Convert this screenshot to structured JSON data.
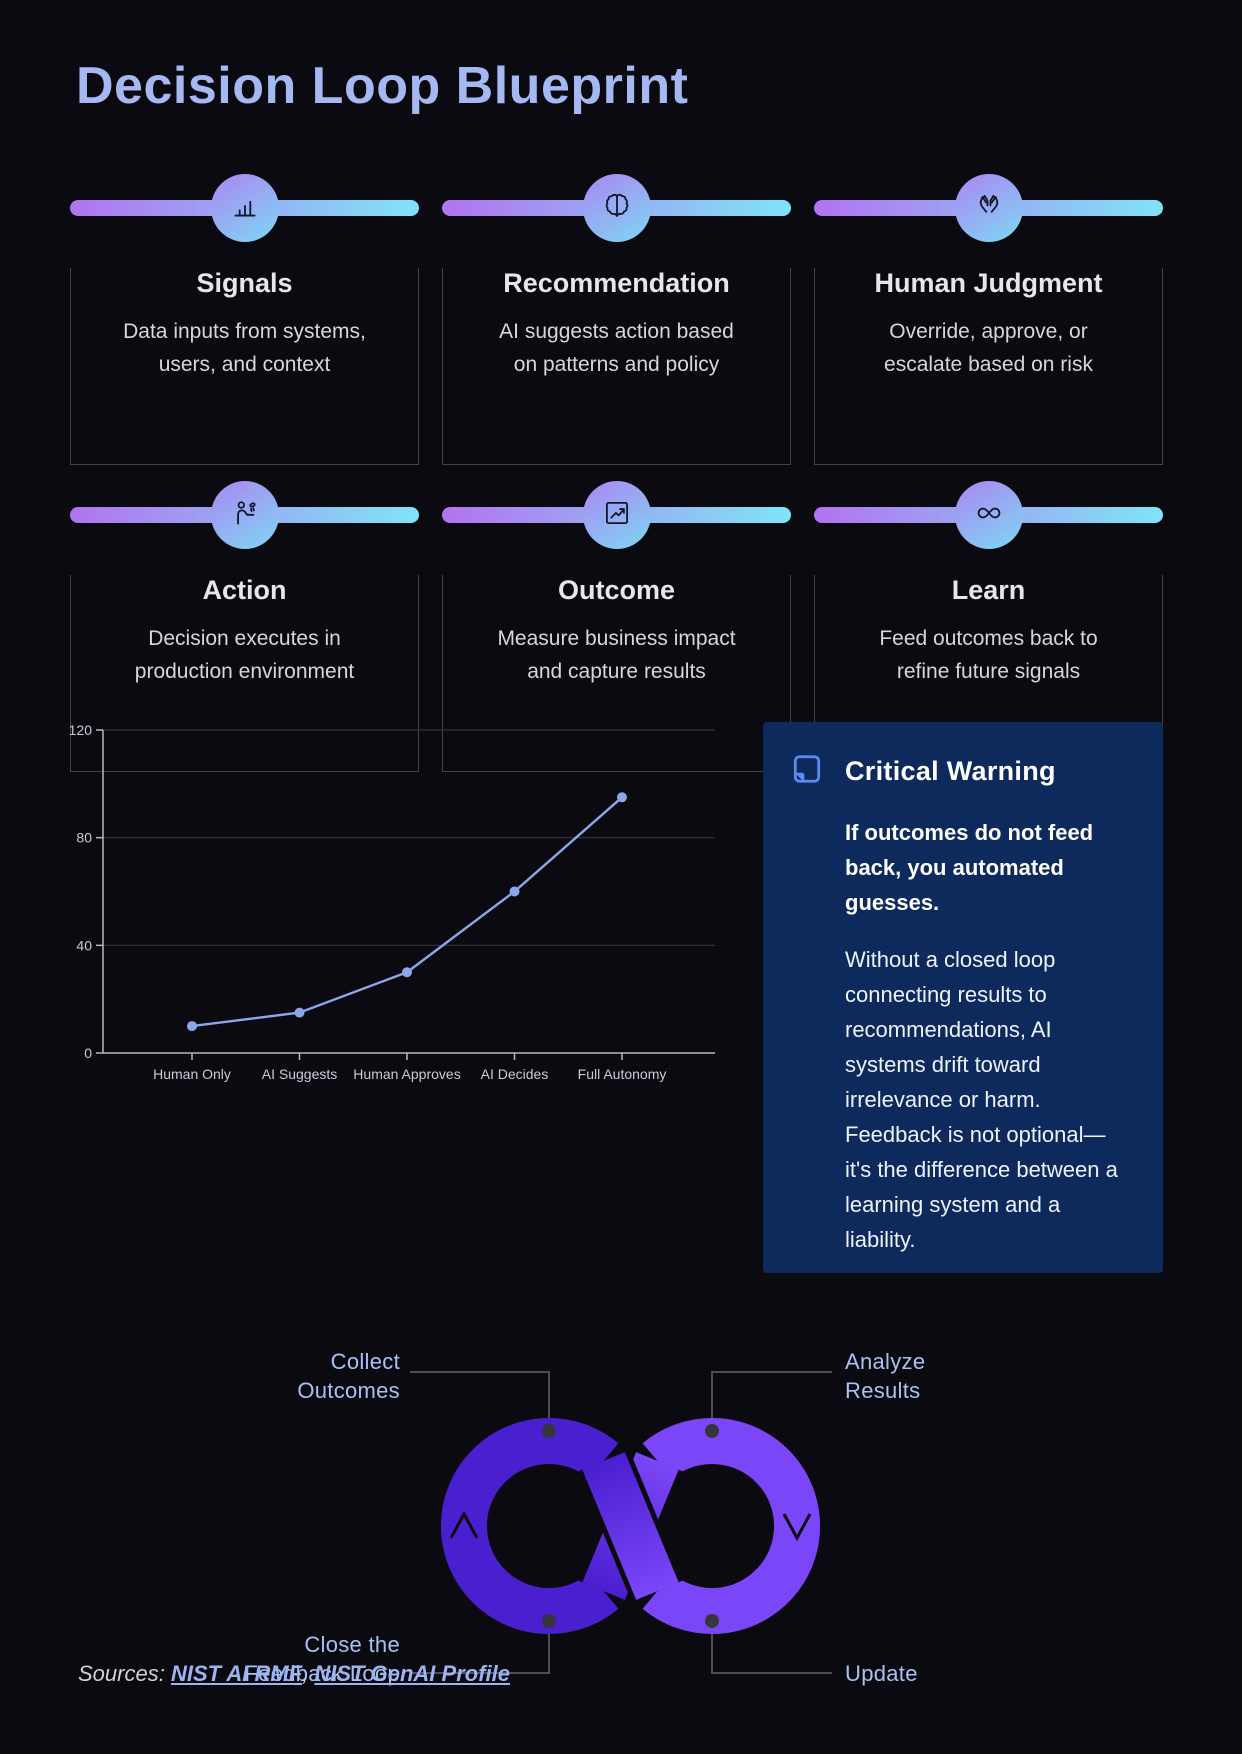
{
  "page": {
    "title": "Decision Loop Blueprint",
    "background_color": "#0a0a10",
    "accent_color": "#a5b8f2"
  },
  "cards": [
    {
      "title": "Signals",
      "description": "Data inputs from systems, users, and context",
      "icon": "bar-chart-icon"
    },
    {
      "title": "Recommendation",
      "description": "AI suggests action based on patterns and policy",
      "icon": "brain-icon"
    },
    {
      "title": "Human Judgment",
      "description": "Override, approve, or escalate based on risk",
      "icon": "open-hands-icon"
    },
    {
      "title": "Action",
      "description": "Decision executes in production environment",
      "icon": "person-presenting-icon"
    },
    {
      "title": "Outcome",
      "description": "Measure business impact and capture results",
      "icon": "trend-chart-icon"
    },
    {
      "title": "Learn",
      "description": "Feed outcomes back to refine future signals",
      "icon": "infinity-icon"
    }
  ],
  "chart_data": {
    "type": "line",
    "categories": [
      "Human Only",
      "AI Suggests",
      "Human Approves",
      "AI Decides",
      "Full Autonomy"
    ],
    "values": [
      10,
      15,
      30,
      60,
      95
    ],
    "title": "",
    "xlabel": "",
    "ylabel": "",
    "ylim": [
      0,
      120
    ],
    "yticks": [
      0,
      40,
      80,
      120
    ],
    "grid": true,
    "legend": false,
    "line_color": "#8ca6ea",
    "marker": "circle"
  },
  "warning": {
    "title": "Critical Warning",
    "lead": "If outcomes do not feed back, you automated guesses.",
    "body": "Without a closed loop connecting results to recommendations, AI systems drift toward irrelevance or harm. Feedback is not optional—it's the difference between a learning system and a liability.",
    "background_color": "#0e2a5c",
    "icon": "note-icon",
    "icon_color": "#5b8af0"
  },
  "loop": {
    "labels": [
      {
        "id": "collect-outcomes",
        "line1": "Collect",
        "line2": "Outcomes"
      },
      {
        "id": "analyze-results",
        "line1": "Analyze",
        "line2": "Results"
      },
      {
        "id": "close-feedback-loop",
        "line1": "Close the",
        "line2": "Feedback Loop"
      },
      {
        "id": "update",
        "line1": "Update",
        "line2": ""
      }
    ],
    "left_lobe_color": "#4a1fd0",
    "right_lobe_color": "#7b46f7"
  },
  "sources": {
    "prefix": "Sources:",
    "links": [
      "NIST AI RMF",
      "NIST GenAI Profile"
    ],
    "separator": ", "
  }
}
